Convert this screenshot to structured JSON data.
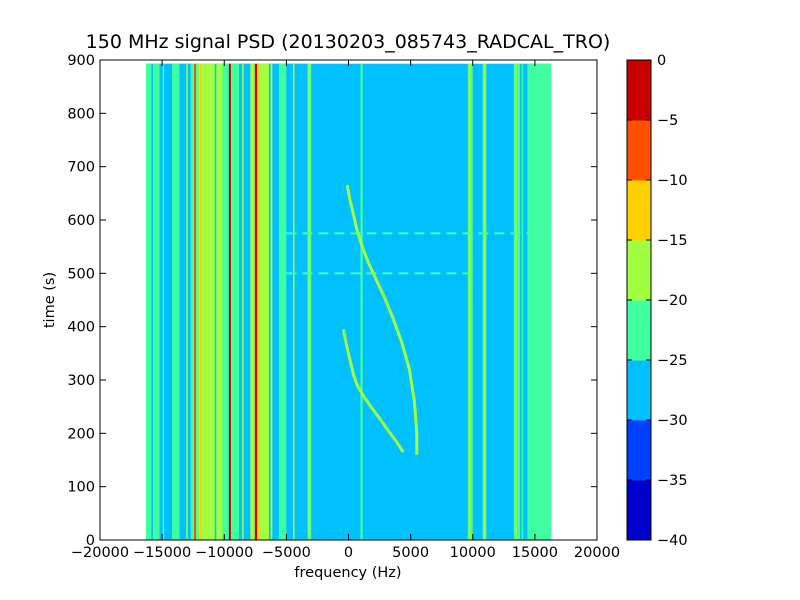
{
  "chart_data": {
    "type": "heatmap",
    "title": "150 MHz signal PSD (20130203_085743_RADCAL_TRO)",
    "xlabel": "frequency (Hz)",
    "ylabel": "time (s)",
    "xlim": [
      -20000,
      20000
    ],
    "ylim": [
      0,
      900
    ],
    "xticks": [
      "−20000",
      "−15000",
      "−10000",
      "−5000",
      "0",
      "5000",
      "10000",
      "15000",
      "20000"
    ],
    "xtick_values": [
      -20000,
      -15000,
      -10000,
      -5000,
      0,
      5000,
      10000,
      15000,
      20000
    ],
    "yticks": [
      "0",
      "100",
      "200",
      "300",
      "400",
      "500",
      "600",
      "700",
      "800",
      "900"
    ],
    "ytick_values": [
      0,
      100,
      200,
      300,
      400,
      500,
      600,
      700,
      800,
      900
    ],
    "data_extent": {
      "x": [
        -16300,
        16300
      ],
      "y": [
        0,
        893
      ]
    },
    "grid": false,
    "colorbar": {
      "levels": [
        -40,
        -35,
        -30,
        -25,
        -20,
        -15,
        -10,
        -5,
        0
      ],
      "tick_labels": [
        "0",
        "−5",
        "−10",
        "−15",
        "−20",
        "−25",
        "−30",
        "−35",
        "−40"
      ],
      "colors": [
        "#0000cc",
        "#0040ff",
        "#00c0ff",
        "#40ffa0",
        "#a0ff40",
        "#ffd000",
        "#ff5000",
        "#c80000"
      ]
    },
    "background_level_color": "#00c0ff",
    "bands": [
      {
        "x0": -16300,
        "x1": -15200,
        "color": "#40ffa0"
      },
      {
        "x0": -15200,
        "x1": -14200,
        "color": "#00c0ff"
      },
      {
        "x0": -14200,
        "x1": -13600,
        "color": "#40ffa0"
      },
      {
        "x0": -13600,
        "x1": -12700,
        "color": "#00c0ff"
      },
      {
        "x0": -12700,
        "x1": -12100,
        "color": "#40ffa0"
      },
      {
        "x0": -12100,
        "x1": -10200,
        "color": "#a0ff40"
      },
      {
        "x0": -10200,
        "x1": -8800,
        "color": "#40ffa0"
      },
      {
        "x0": -8800,
        "x1": -7900,
        "color": "#00c0ff"
      },
      {
        "x0": -7900,
        "x1": -6400,
        "color": "#a0ff40"
      },
      {
        "x0": -6400,
        "x1": -5600,
        "color": "#00c0ff"
      },
      {
        "x0": -5600,
        "x1": -5000,
        "color": "#40ffa0"
      },
      {
        "x0": -5000,
        "x1": -3300,
        "color": "#00c0ff"
      },
      {
        "x0": -3300,
        "x1": -3000,
        "color": "#40ffa0"
      },
      {
        "x0": 9600,
        "x1": 10000,
        "color": "#40ffa0"
      },
      {
        "x0": 10800,
        "x1": 11100,
        "color": "#40ffa0"
      },
      {
        "x0": 13300,
        "x1": 13800,
        "color": "#40ffa0"
      },
      {
        "x0": 14400,
        "x1": 14800,
        "color": "#40ffa0"
      },
      {
        "x0": 14800,
        "x1": 16300,
        "color": "#40ffa0"
      }
    ],
    "lines": [
      {
        "x": -15800,
        "width": 120,
        "color": "#00c0ff"
      },
      {
        "x": -14900,
        "width": 100,
        "color": "#40ffa0"
      },
      {
        "x": -13000,
        "width": 120,
        "color": "#a0ff40"
      },
      {
        "x": -12350,
        "width": 160,
        "color": "#ff5000"
      },
      {
        "x": -11900,
        "width": 140,
        "color": "#ffd000"
      },
      {
        "x": -11300,
        "width": 120,
        "color": "#a0ff40"
      },
      {
        "x": -10700,
        "width": 120,
        "color": "#00c0ff"
      },
      {
        "x": -10200,
        "width": 100,
        "color": "#a0ff40"
      },
      {
        "x": -9550,
        "width": 160,
        "color": "#c80000"
      },
      {
        "x": -8500,
        "width": 120,
        "color": "#a0ff40"
      },
      {
        "x": -7450,
        "width": 180,
        "color": "#c80000"
      },
      {
        "x": -7200,
        "width": 120,
        "color": "#ffd000"
      },
      {
        "x": -6200,
        "width": 140,
        "color": "#a0ff40"
      },
      {
        "x": -4400,
        "width": 120,
        "color": "#a0ff40"
      },
      {
        "x": -3150,
        "width": 160,
        "color": "#a0ff40"
      },
      {
        "x": 1050,
        "width": 180,
        "color": "#40ffa0"
      },
      {
        "x": 9750,
        "width": 180,
        "color": "#a0ff40"
      },
      {
        "x": 10950,
        "width": 140,
        "color": "#a0ff40"
      },
      {
        "x": 13500,
        "width": 120,
        "color": "#a0ff40"
      },
      {
        "x": 14000,
        "width": 80,
        "color": "#40ffa0"
      }
    ],
    "hlines": [
      {
        "y": 575,
        "x0": -5000,
        "x1": 14800,
        "color": "#40ffa0"
      },
      {
        "y": 500,
        "x0": -5000,
        "x1": 9600,
        "color": "#40ffa0"
      }
    ],
    "traces": [
      {
        "name": "",
        "color": "#a0ff40",
        "width": 3,
        "x": [
          -100,
          100,
          400,
          700,
          1100,
          1600,
          2200,
          2900,
          3600,
          4300,
          4900,
          5300,
          5500,
          5500
        ],
        "y": [
          665,
          640,
          610,
          580,
          550,
          520,
          490,
          455,
          415,
          370,
          320,
          260,
          200,
          160
        ]
      },
      {
        "name": "",
        "color": "#a0ff40",
        "width": 3,
        "x": [
          -400,
          -200,
          100,
          400,
          700,
          1200,
          1800,
          2500,
          3200,
          3900,
          4400
        ],
        "y": [
          395,
          370,
          340,
          310,
          290,
          270,
          250,
          228,
          205,
          183,
          165
        ]
      }
    ]
  }
}
